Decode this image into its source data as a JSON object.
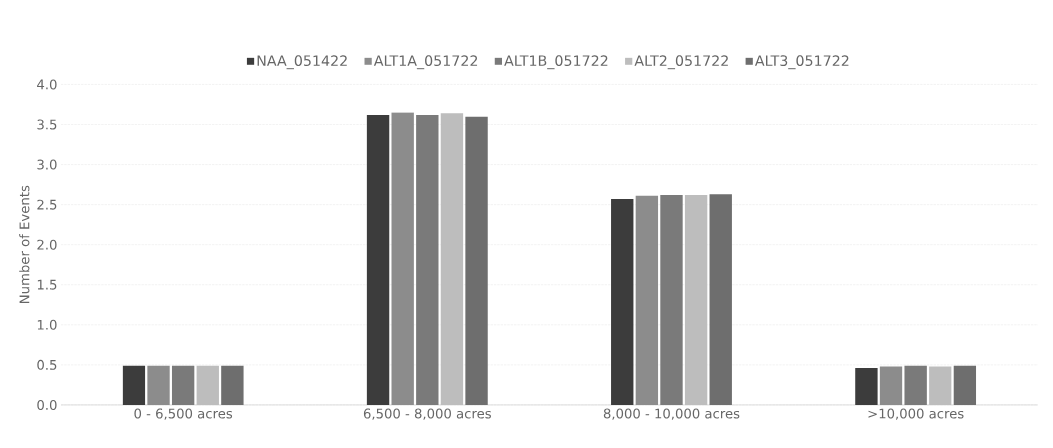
{
  "chart_data": {
    "type": "bar",
    "ylabel": "Number of Events",
    "categories": [
      "0 - 6,500 acres",
      "6,500 - 8,000 acres",
      "8,000 - 10,000 acres",
      ">10,000 acres"
    ],
    "series": [
      {
        "name": "NAA_051422",
        "color": "#3c3c3c",
        "values": [
          0.49,
          3.62,
          2.57,
          0.46
        ]
      },
      {
        "name": "ALT1A_051722",
        "color": "#8c8c8c",
        "values": [
          0.49,
          3.65,
          2.61,
          0.48
        ]
      },
      {
        "name": "ALT1B_051722",
        "color": "#7a7a7a",
        "values": [
          0.49,
          3.62,
          2.62,
          0.49
        ]
      },
      {
        "name": "ALT2_051722",
        "color": "#bdbdbd",
        "values": [
          0.49,
          3.64,
          2.62,
          0.48
        ]
      },
      {
        "name": "ALT3_051722",
        "color": "#6e6e6e",
        "values": [
          0.49,
          3.6,
          2.63,
          0.49
        ]
      }
    ],
    "ylim": [
      0,
      4
    ],
    "yticks": [
      {
        "value": 0,
        "label": "0.0"
      },
      {
        "value": 0.5,
        "label": "0.5"
      },
      {
        "value": 1,
        "label": "1.0"
      },
      {
        "value": 1.5,
        "label": "1.5"
      },
      {
        "value": 2,
        "label": "2.0"
      },
      {
        "value": 2.5,
        "label": "2.5"
      },
      {
        "value": 3,
        "label": "3.0"
      },
      {
        "value": 3.5,
        "label": "3.5"
      },
      {
        "value": 4,
        "label": "4.0"
      }
    ],
    "grid": "y",
    "legend": "top"
  }
}
